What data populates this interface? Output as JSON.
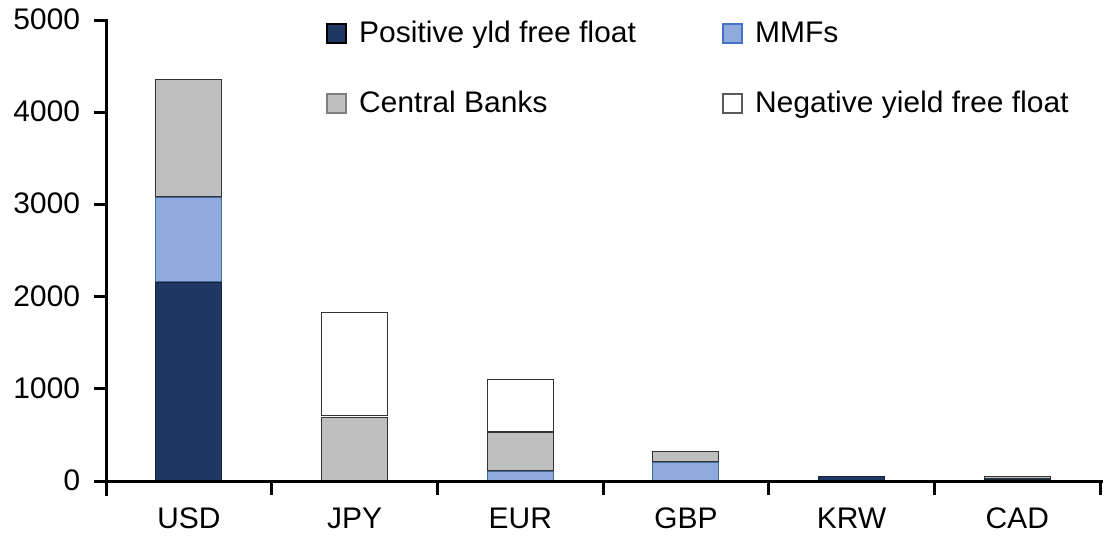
{
  "chart_data": {
    "type": "bar",
    "stacked": true,
    "title": "",
    "xlabel": "",
    "ylabel": "",
    "grid": false,
    "legend_position": "top",
    "axis_color": "#000000",
    "text_color": "#000000",
    "background_color": "#ffffff",
    "ylim": [
      0,
      5000
    ],
    "yticks": [
      "0",
      "1000",
      "2000",
      "3000",
      "4000",
      "5000"
    ],
    "ytick_values": [
      0,
      1000,
      2000,
      3000,
      4000,
      5000
    ],
    "categories": [
      "USD",
      "JPY",
      "EUR",
      "GBP",
      "KRW",
      "CAD"
    ],
    "series": [
      {
        "name": "Positive yld free float",
        "fill": "#1F3864",
        "border": "#17233B",
        "values": [
          2160,
          0,
          0,
          0,
          50,
          25
        ]
      },
      {
        "name": "MMFs",
        "fill": "#8FAADC",
        "border": "#44699D",
        "values": [
          920,
          0,
          110,
          210,
          0,
          0
        ]
      },
      {
        "name": "Central Banks",
        "fill": "#BFBFBF",
        "border": "#333333",
        "values": [
          1280,
          700,
          420,
          120,
          0,
          35
        ]
      },
      {
        "name": "Negative yield free float",
        "fill": "#FFFFFF",
        "border": "#333333",
        "values": [
          0,
          1130,
          575,
          0,
          0,
          0
        ]
      }
    ],
    "totals": [
      4360,
      1830,
      1105,
      330,
      50,
      60
    ],
    "legend": [
      {
        "label": "Positive yld free float",
        "fill": "#1F3864",
        "border": "#000000"
      },
      {
        "label": "MMFs",
        "fill": "#8FAADC",
        "border": "#4472C4"
      },
      {
        "label": "Central Banks",
        "fill": "#BFBFBF",
        "border": "#7F7F7F"
      },
      {
        "label": "Negative yield free float",
        "fill": "#FFFFFF",
        "border": "#595959"
      }
    ]
  }
}
